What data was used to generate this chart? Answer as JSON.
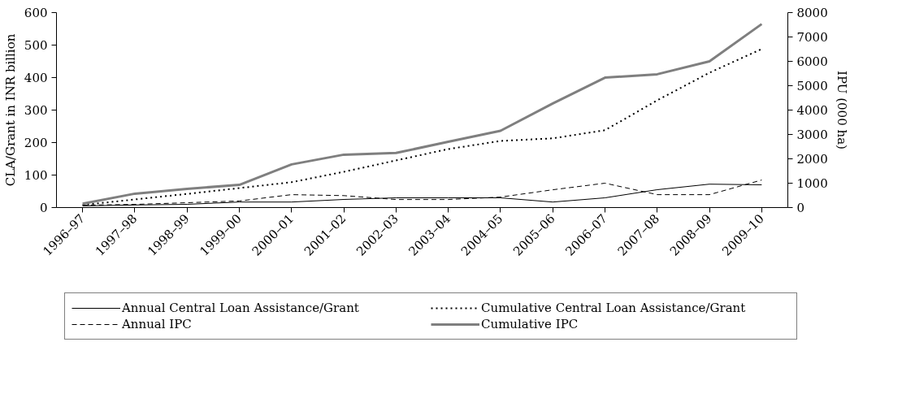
{
  "chart_data": {
    "type": "line",
    "ylabel": "CLA/Grant in INR billion",
    "y2label": "IPU (000 ha)",
    "categories": [
      "1996–97",
      "1997–98",
      "1998–99",
      "1999–00",
      "2000–01",
      "2001–02",
      "2002–03",
      "2003–04",
      "2004–05",
      "2005–06",
      "2006–07",
      "2007–08",
      "2008–09",
      "2009–10"
    ],
    "series": [
      {
        "name": "Annual Central Loan Assistance/Grant",
        "color": "#000000",
        "line_style": "solid",
        "values": [
          5,
          8,
          10,
          17,
          17,
          25,
          30,
          30,
          30,
          17,
          30,
          55,
          72,
          70
        ]
      },
      {
        "name": "Cumulative Central Loan Assistance/Grant",
        "color": "#000000",
        "line_style": "dotted",
        "values": [
          8,
          25,
          42,
          60,
          78,
          110,
          145,
          180,
          205,
          213,
          238,
          330,
          415,
          488
        ]
      },
      {
        "name": "Annual IPC",
        "color": "#000000",
        "line_style": "dashed",
        "axis": "y2",
        "values": [
          100,
          130,
          200,
          270,
          530,
          490,
          330,
          330,
          430,
          730,
          1000,
          530,
          530,
          1130
        ]
      },
      {
        "name": "Cumulative IPC",
        "color": "#7f7f7f",
        "line_style": "solid",
        "axis": "y2",
        "values": [
          160,
          570,
          770,
          930,
          1770,
          2170,
          2240,
          2700,
          3150,
          4270,
          5330,
          5470,
          6000,
          7530
        ]
      }
    ],
    "ylim": [
      0,
      600
    ],
    "yticks": [
      0,
      100,
      200,
      300,
      400,
      500,
      600
    ],
    "y2lim": [
      0,
      8000
    ],
    "y2ticks": [
      0,
      1000,
      2000,
      3000,
      4000,
      5000,
      6000,
      7000,
      8000
    ],
    "grid": false,
    "legend": "bottom",
    "marker": "none"
  }
}
